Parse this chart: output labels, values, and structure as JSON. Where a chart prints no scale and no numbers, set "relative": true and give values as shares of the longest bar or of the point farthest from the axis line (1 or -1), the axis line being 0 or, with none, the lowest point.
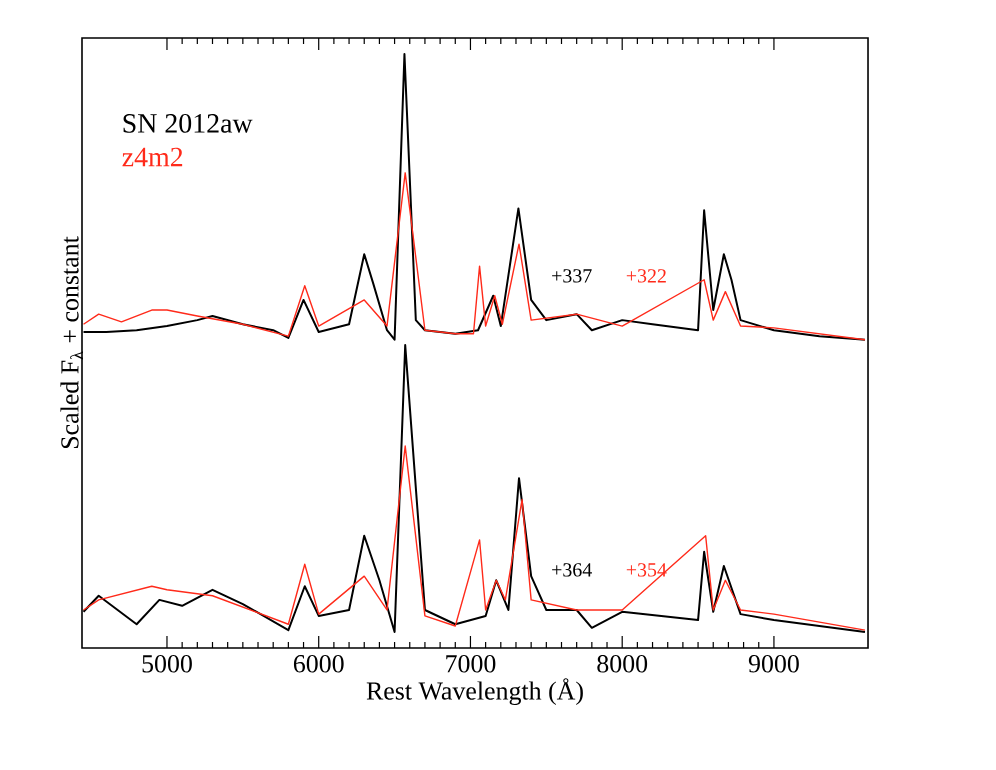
{
  "chart_data": {
    "type": "line",
    "relative": true,
    "xlabel": "Rest Wavelength (Å)",
    "ylabel": "Scaled F$_{λ}$ + constant",
    "xlim": [
      4440,
      9620
    ],
    "xticks": [
      5000,
      6000,
      7000,
      8000,
      9000
    ],
    "legend": "top left",
    "grid": false,
    "marker": "none",
    "line_style": "solid",
    "series": [
      {
        "name": "SN 2012aw",
        "color": "#000000",
        "x": [
          4450,
          4600,
          4800,
          5000,
          5200,
          5300,
          5500,
          5700,
          5800,
          5900,
          6000,
          6200,
          6300,
          6360,
          6450,
          6500,
          6565,
          6640,
          6700,
          6900,
          7050,
          7150,
          7200,
          7316,
          7400,
          7500,
          7700,
          7800,
          8000,
          8200,
          8500,
          8540,
          8600,
          8670,
          8720,
          8780,
          9000,
          9300,
          9600
        ],
        "values": [
          0.532,
          0.532,
          0.535,
          0.542,
          0.552,
          0.559,
          0.545,
          0.535,
          0.522,
          0.586,
          0.532,
          0.545,
          0.663,
          0.613,
          0.535,
          0.519,
          1.0,
          0.552,
          0.535,
          0.529,
          0.535,
          0.593,
          0.542,
          0.74,
          0.586,
          0.552,
          0.562,
          0.535,
          0.552,
          0.545,
          0.535,
          0.737,
          0.569,
          0.663,
          0.62,
          0.552,
          0.535,
          0.525,
          0.519
        ]
      },
      {
        "name": "z4m2",
        "color": "#ff2a1a",
        "x": [
          4450,
          4550,
          4700,
          4900,
          5000,
          5200,
          5500,
          5800,
          5908,
          6000,
          6300,
          6450,
          6570,
          6700,
          6900,
          7020,
          7060,
          7100,
          7160,
          7210,
          7320,
          7400,
          7700,
          8000,
          8540,
          8600,
          8680,
          8780,
          9000,
          9600
        ],
        "values": [
          0.545,
          0.562,
          0.549,
          0.569,
          0.569,
          0.559,
          0.545,
          0.525,
          0.61,
          0.542,
          0.586,
          0.542,
          0.8,
          0.535,
          0.529,
          0.529,
          0.643,
          0.542,
          0.593,
          0.545,
          0.68,
          0.552,
          0.562,
          0.542,
          0.62,
          0.552,
          0.6,
          0.542,
          0.539,
          0.519
        ]
      },
      {
        "color": "#000000",
        "x": [
          4450,
          4550,
          4800,
          4950,
          5100,
          5300,
          5500,
          5800,
          5908,
          6000,
          6200,
          6300,
          6400,
          6500,
          6570,
          6700,
          6900,
          7100,
          7170,
          7250,
          7320,
          7400,
          7500,
          7700,
          7800,
          8000,
          8500,
          8540,
          8600,
          8670,
          8780,
          9000,
          9600
        ],
        "values": [
          0.061,
          0.088,
          0.04,
          0.081,
          0.071,
          0.098,
          0.074,
          0.03,
          0.104,
          0.054,
          0.064,
          0.189,
          0.114,
          0.027,
          0.51,
          0.064,
          0.04,
          0.054,
          0.114,
          0.064,
          0.286,
          0.121,
          0.064,
          0.064,
          0.034,
          0.061,
          0.047,
          0.162,
          0.061,
          0.138,
          0.057,
          0.047,
          0.027
        ]
      },
      {
        "color": "#ff2a1a",
        "x": [
          4450,
          4550,
          4900,
          5000,
          5300,
          5800,
          5908,
          6000,
          6300,
          6450,
          6570,
          6700,
          6900,
          7060,
          7100,
          7170,
          7230,
          7340,
          7400,
          7700,
          8000,
          8550,
          8600,
          8680,
          8780,
          9000,
          9600
        ],
        "values": [
          0.064,
          0.081,
          0.104,
          0.098,
          0.088,
          0.04,
          0.141,
          0.057,
          0.121,
          0.064,
          0.34,
          0.054,
          0.037,
          0.182,
          0.064,
          0.114,
          0.081,
          0.25,
          0.081,
          0.064,
          0.064,
          0.189,
          0.064,
          0.114,
          0.064,
          0.057,
          0.03
        ]
      }
    ],
    "annotations": [
      "+337",
      "+322",
      "+364",
      "+354"
    ]
  }
}
